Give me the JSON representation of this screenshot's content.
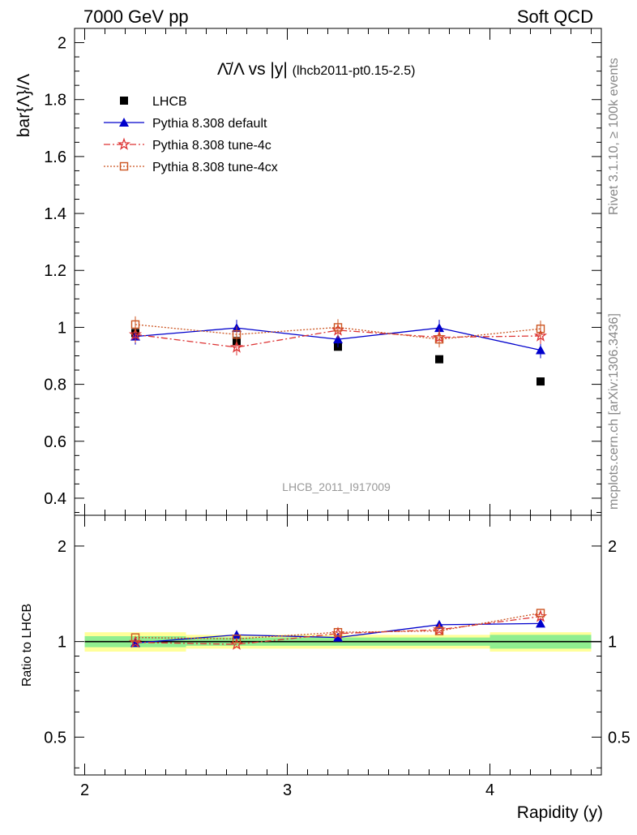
{
  "header": {
    "left": "7000 GeV pp",
    "right": "Soft QCD"
  },
  "side_labels": {
    "rivet": "Rivet 3.1.10, ≥ 100k events",
    "mcplots": "mcplots.cern.ch [arXiv:1306.3436]"
  },
  "watermark": "LHCB_2011_I917009",
  "colors": {
    "data": "#000000",
    "default": "#0000cc",
    "tune4c": "#dd3333",
    "tune4cx": "#cc5522",
    "band_inner": "#90ee90",
    "band_outer": "#ffff99"
  },
  "chart_data": [
    {
      "type": "scatter",
      "title": "Λ̄/Λ vs |y|",
      "title_suffix": "(lhcb2011-pt0.15-2.5)",
      "ylabel": "bar{Λ}/Λ",
      "xlim": [
        1.95,
        4.55
      ],
      "ylim": [
        0.34,
        2.05
      ],
      "yticks": [
        0.4,
        0.6,
        0.8,
        1.0,
        1.2,
        1.4,
        1.6,
        1.8,
        2.0
      ],
      "ytick_labels": [
        "0.4",
        "0.6",
        "0.8",
        "1",
        "1.2",
        "1.4",
        "1.6",
        "1.8",
        "2"
      ],
      "x": [
        2.25,
        2.75,
        3.25,
        3.75,
        4.25
      ],
      "series": [
        {
          "name": "LHCB",
          "marker": "square",
          "values": [
            0.98,
            0.952,
            0.932,
            0.888,
            0.81
          ]
        },
        {
          "name": "Pythia 8.308 default",
          "marker": "triangle",
          "line": "solid",
          "values": [
            0.968,
            0.998,
            0.958,
            0.998,
            0.92
          ]
        },
        {
          "name": "Pythia 8.308 tune-4c",
          "marker": "star",
          "line": "dashdot",
          "values": [
            0.975,
            0.93,
            0.99,
            0.965,
            0.97
          ]
        },
        {
          "name": "Pythia 8.308 tune-4cx",
          "marker": "open-square",
          "line": "dotted",
          "values": [
            1.01,
            0.975,
            1.0,
            0.958,
            0.995
          ]
        }
      ],
      "legend_position": "top-left"
    },
    {
      "type": "scatter",
      "ylabel": "Ratio to LHCB",
      "xlabel": "Rapidity (y)",
      "xlim": [
        1.95,
        4.55
      ],
      "xticks": [
        2,
        3,
        4
      ],
      "xtick_labels": [
        "2",
        "3",
        "4"
      ],
      "ylim": [
        0.38,
        2.5
      ],
      "yscale": "log",
      "yticks": [
        0.5,
        1,
        2
      ],
      "ytick_labels": [
        "0.5",
        "1",
        "2"
      ],
      "x": [
        2.25,
        2.75,
        3.25,
        3.75,
        4.25
      ],
      "band_edges": [
        2.0,
        2.5,
        3.0,
        3.5,
        4.0,
        4.5
      ],
      "band_inner": [
        [
          0.96,
          1.04
        ],
        [
          0.97,
          1.03
        ],
        [
          0.97,
          1.03
        ],
        [
          0.97,
          1.03
        ],
        [
          0.95,
          1.05
        ]
      ],
      "band_outer": [
        [
          0.93,
          1.07
        ],
        [
          0.95,
          1.05
        ],
        [
          0.95,
          1.05
        ],
        [
          0.95,
          1.05
        ],
        [
          0.93,
          1.07
        ]
      ],
      "series": [
        {
          "name": "Pythia 8.308 default",
          "values": [
            0.99,
            1.05,
            1.03,
            1.13,
            1.14
          ]
        },
        {
          "name": "Pythia 8.308 tune-4c",
          "values": [
            0.995,
            0.98,
            1.06,
            1.09,
            1.2
          ]
        },
        {
          "name": "Pythia 8.308 tune-4cx",
          "values": [
            1.03,
            1.02,
            1.07,
            1.08,
            1.23
          ]
        }
      ]
    }
  ]
}
